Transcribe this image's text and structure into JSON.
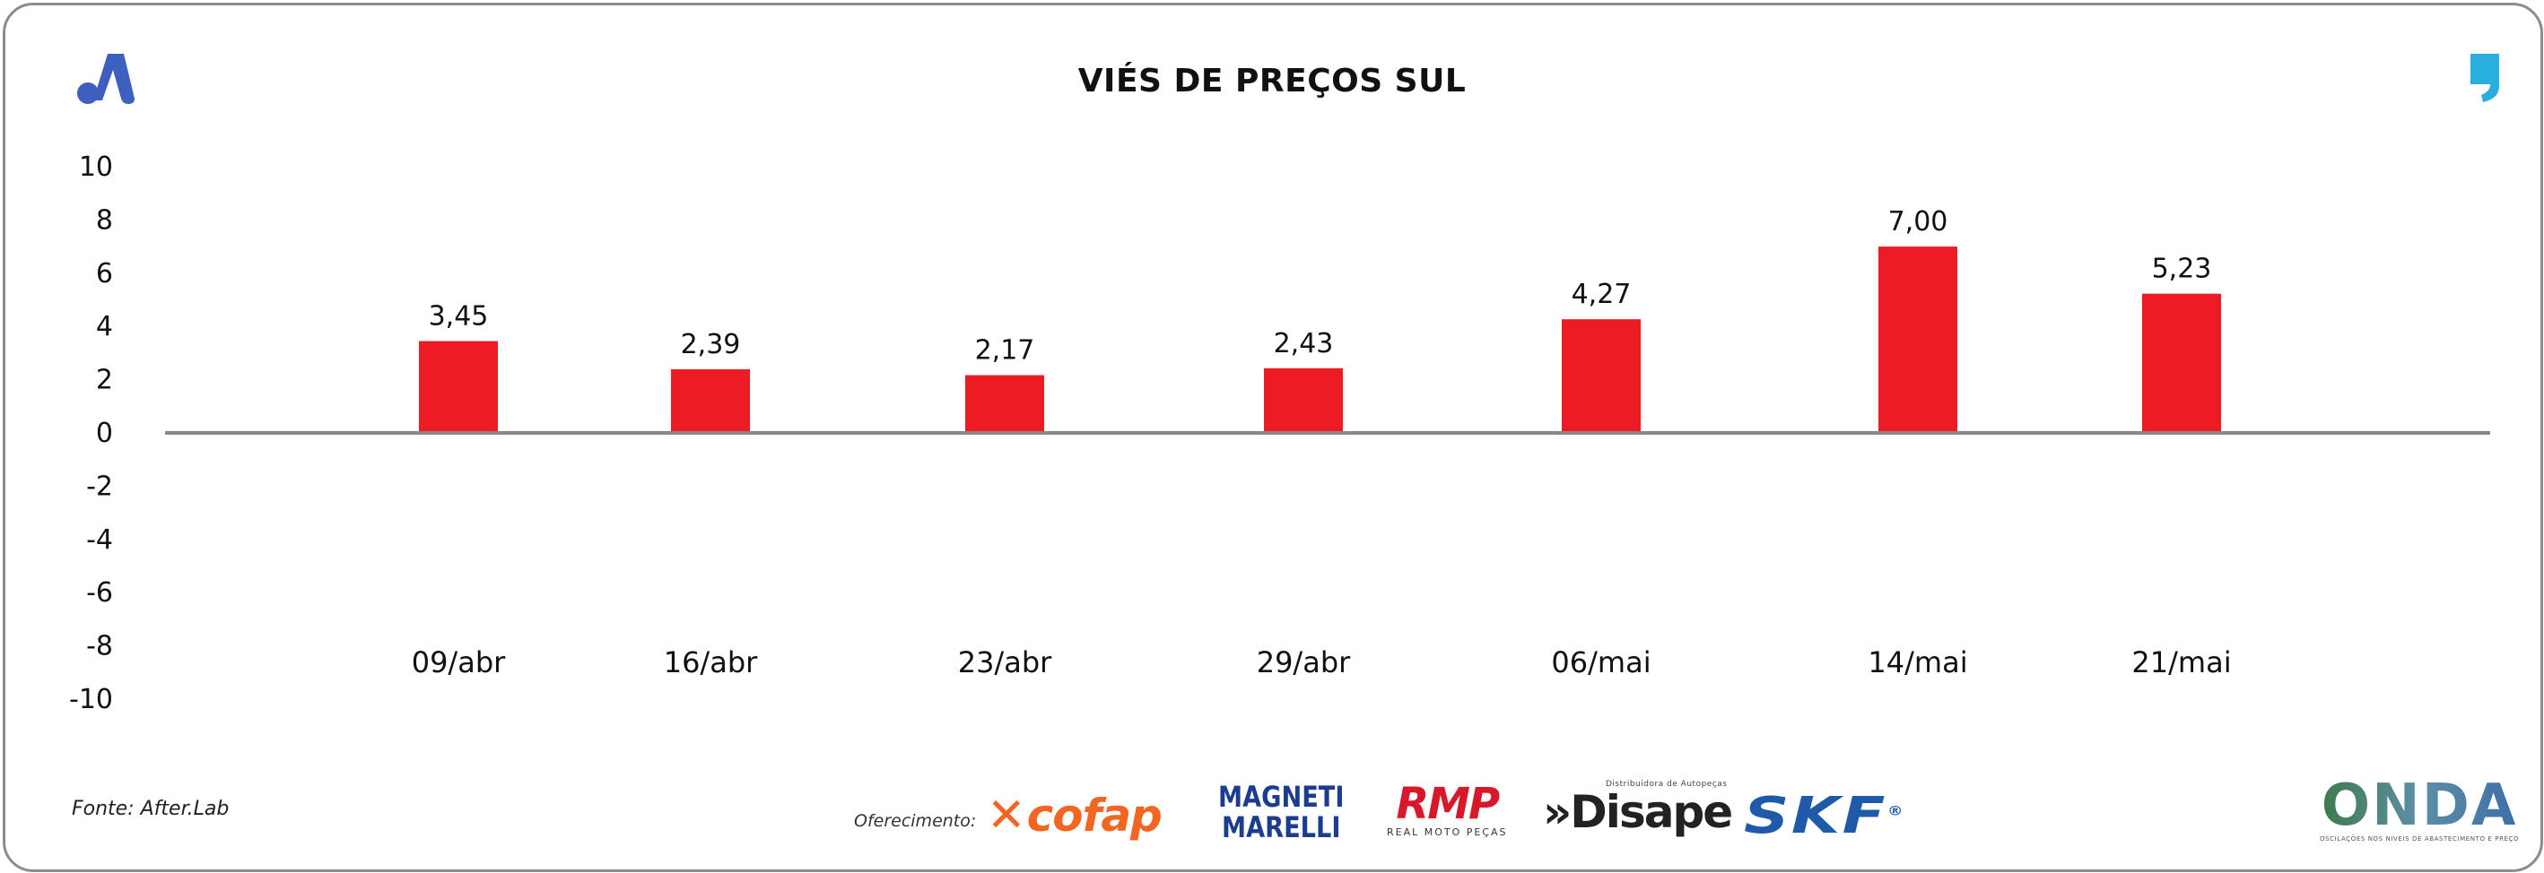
{
  "title": "VIÉS DE PREÇOS SUL",
  "source": "Fonte: After.Lab",
  "sponsor_label": "Oferecimento:",
  "sponsors": {
    "cofap": "cofap",
    "magneti_line1": "MAGNETI",
    "magneti_line2": "MARELLI",
    "rmp": "RMP",
    "rmp_sub": "REAL MOTO PEÇAS",
    "disape_sub": "Distribuidora de Autopeças",
    "disape": "»Disape",
    "skf": "SKF",
    "onda": "ONDA",
    "onda_sub": "OSCILAÇÕES NOS NÍVEIS DE ABASTECIMENTO E PREÇO"
  },
  "colors": {
    "bar": "#ed1c24",
    "axis": "#888888",
    "brand_blue": "#3f5fc0",
    "quote_blue": "#29aee0"
  },
  "icons": {
    "brand": "brand-a-icon",
    "quote": "quote-icon"
  },
  "chart_data": {
    "type": "bar",
    "title": "VIÉS DE PREÇOS SUL",
    "categories": [
      "09/abr",
      "16/abr",
      "23/abr",
      "29/abr",
      "06/mai",
      "14/mai",
      "21/mai"
    ],
    "values": [
      3.45,
      2.39,
      2.17,
      2.43,
      4.27,
      7.0,
      5.23
    ],
    "value_labels": [
      "3,45",
      "2,39",
      "2,17",
      "2,43",
      "4,27",
      "7,00",
      "5,23"
    ],
    "ylim": [
      -10,
      10
    ],
    "yticks": [
      10,
      8,
      6,
      4,
      2,
      0,
      -2,
      -4,
      -6,
      -8,
      -10
    ],
    "xlabel": "",
    "ylabel": "",
    "grid": false,
    "legend": "none"
  }
}
